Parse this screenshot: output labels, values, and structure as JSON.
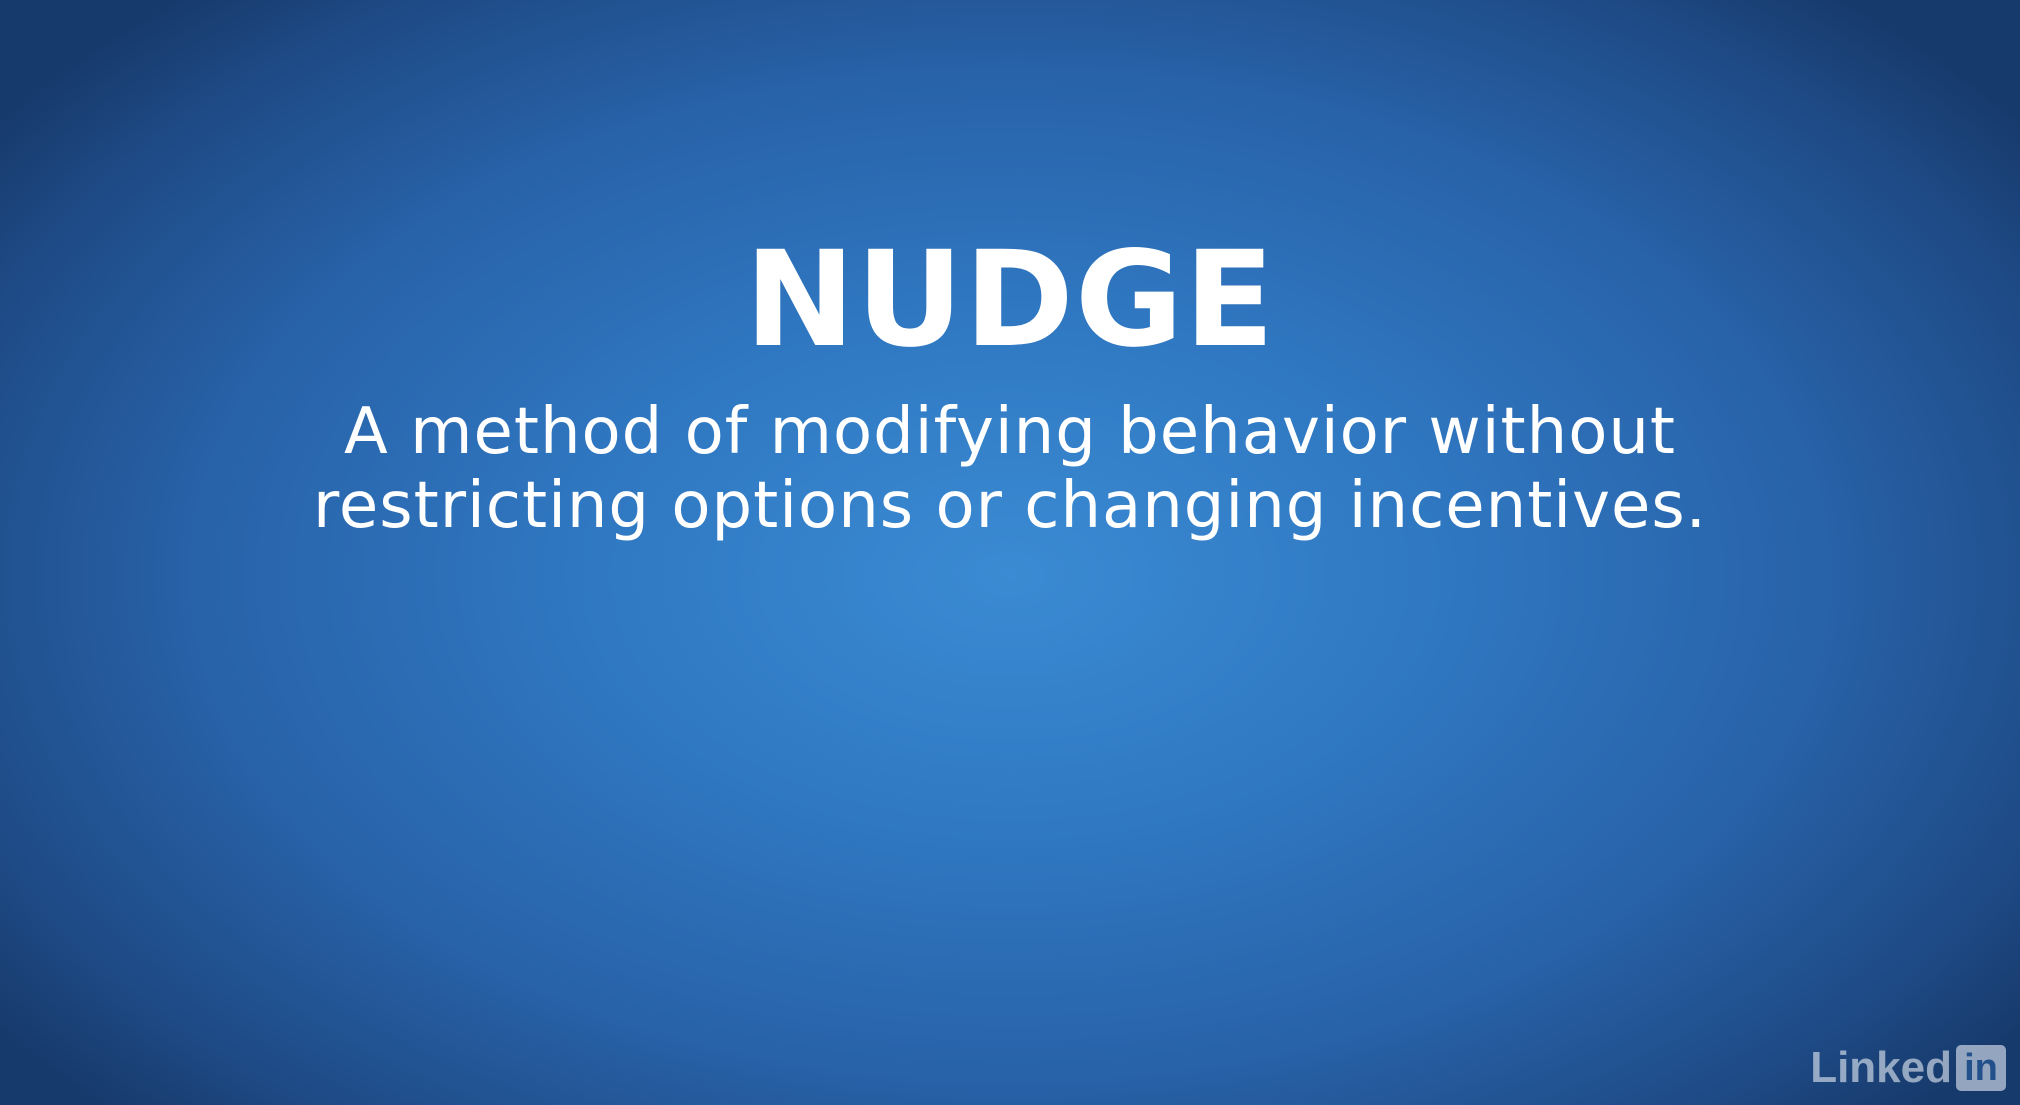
{
  "slide": {
    "title": "NUDGE",
    "subtitle_line1": "A method of modifying behavior without",
    "subtitle_line2": "restricting options or changing incentives."
  },
  "watermark": {
    "brand_text": "Linked",
    "brand_box_text": "in",
    "icon": "linkedin-logo-icon"
  },
  "colors": {
    "background_center": "#3a8bd3",
    "background_edge": "#173a6c",
    "text": "#ffffff"
  }
}
